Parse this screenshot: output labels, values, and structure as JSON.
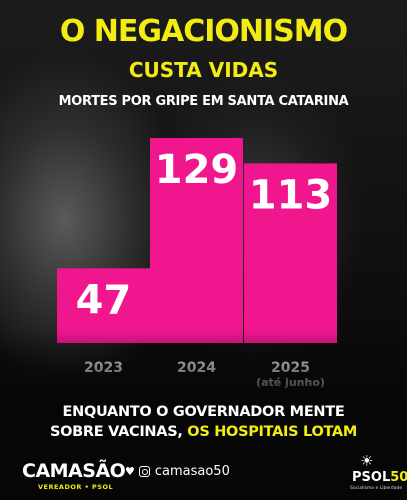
{
  "header": {
    "title_line1": "O NEGACIONISMO",
    "title_line2": "CUSTA VIDAS",
    "subtitle": "MORTES POR GRIPE EM SANTA CATARINA"
  },
  "chart_data": {
    "type": "bar",
    "categories": [
      "2023",
      "2024",
      "2025"
    ],
    "category_notes": [
      "",
      "",
      "(até junho)"
    ],
    "values": [
      47,
      129,
      113
    ],
    "ylim": [
      0,
      129
    ],
    "grid": false,
    "bar_color": "#f0168e",
    "label_color": "#ffffff"
  },
  "footer": {
    "message_line1": "ENQUANTO O GOVERNADOR MENTE",
    "message_line2_prefix": "SOBRE VACINAS,",
    "message_line2_highlight": "OS HOSPITAIS LOTAM",
    "logo": "CAMASÃO",
    "logo_sub": "VEREADOR • PSOL",
    "social_handle": "camasao50",
    "party_logo": "PSOL 50",
    "party_tagline": "Socialismo e Liberdade"
  },
  "colors": {
    "accent_yellow": "#f3ec12",
    "bar_pink": "#f0168e",
    "background": "#0b0b0b"
  },
  "icons": [
    "heart-icon",
    "instagram-icon",
    "psol-sun-icon"
  ]
}
